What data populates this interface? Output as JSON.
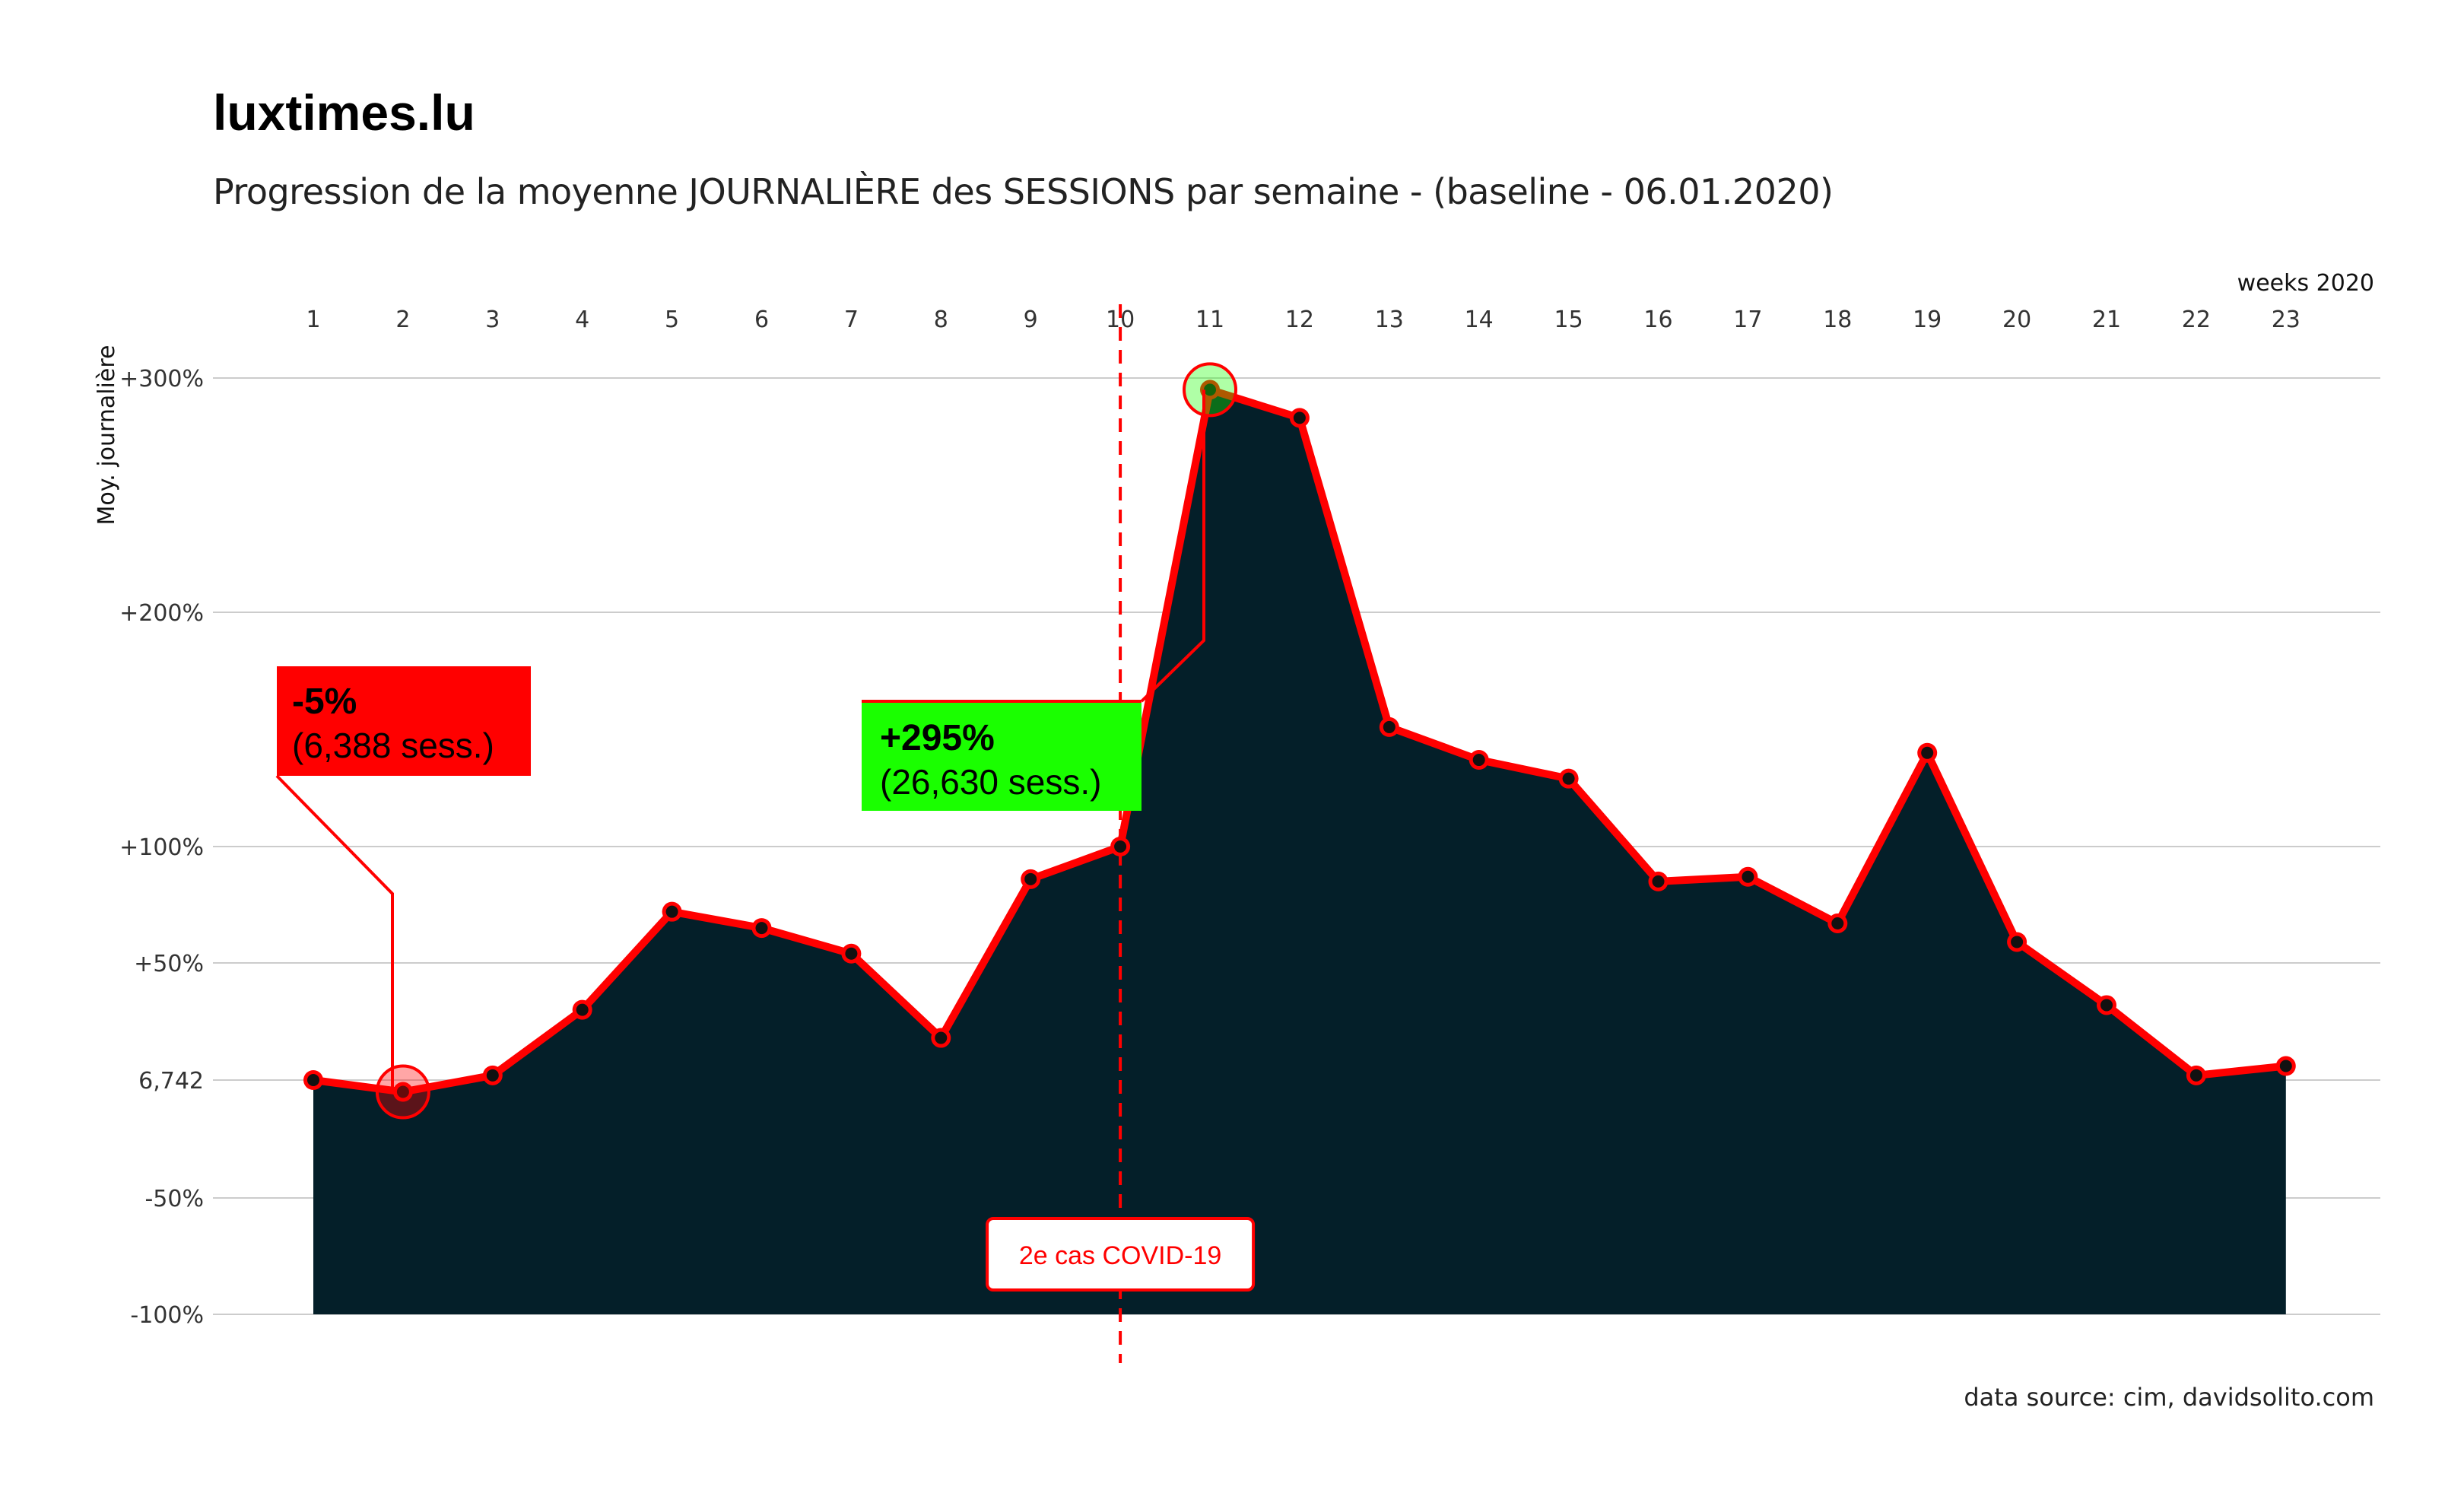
{
  "title": "luxtimes.lu",
  "subtitle": "Progression de la moyenne JOURNALIÈRE des SESSIONS par semaine - (baseline - 06.01.2020)",
  "caption": "data source: cim, davidsolito.com",
  "colors": {
    "area": "#041f29",
    "line": "#ff0000",
    "point": "#111111",
    "grid": "#cccccc",
    "min_box": "#ff0000",
    "max_box": "#1aff00",
    "event_line": "#ff0000"
  },
  "chart_data": {
    "type": "area",
    "x_axis_title": "weeks 2020",
    "y_axis_title": "Moy. journalière",
    "x": [
      1,
      2,
      3,
      4,
      5,
      6,
      7,
      8,
      9,
      10,
      11,
      12,
      13,
      14,
      15,
      16,
      17,
      18,
      19,
      20,
      21,
      22,
      23
    ],
    "x_tick_labels": [
      "1",
      "2",
      "3",
      "4",
      "5",
      "6",
      "7",
      "8",
      "9",
      "10",
      "11",
      "12",
      "13",
      "14",
      "15",
      "16",
      "17",
      "18",
      "19",
      "20",
      "21",
      "22",
      "23"
    ],
    "y_pct_change": [
      0,
      -5,
      2,
      30,
      72,
      65,
      54,
      18,
      86,
      100,
      295,
      283,
      151,
      137,
      129,
      85,
      87,
      67,
      140,
      59,
      32,
      2,
      6
    ],
    "y_ticks": [
      -100,
      -50,
      0,
      50,
      100,
      200,
      300
    ],
    "y_tick_labels": [
      "-100%",
      "-50%",
      "6,742",
      "+50%",
      "+100%",
      "+200%",
      "+300%"
    ],
    "ylim": [
      -100,
      300
    ],
    "baseline_sessions": 6742,
    "grid": true,
    "x_axis_position": "top",
    "annotations": {
      "min": {
        "week": 2,
        "title": "-5%",
        "sub": "(6,388 sess.)"
      },
      "max": {
        "week": 11,
        "title": "+295%",
        "sub": "(26,630 sess.)"
      },
      "event": {
        "week": 10,
        "label": "2e cas COVID-19"
      }
    }
  }
}
